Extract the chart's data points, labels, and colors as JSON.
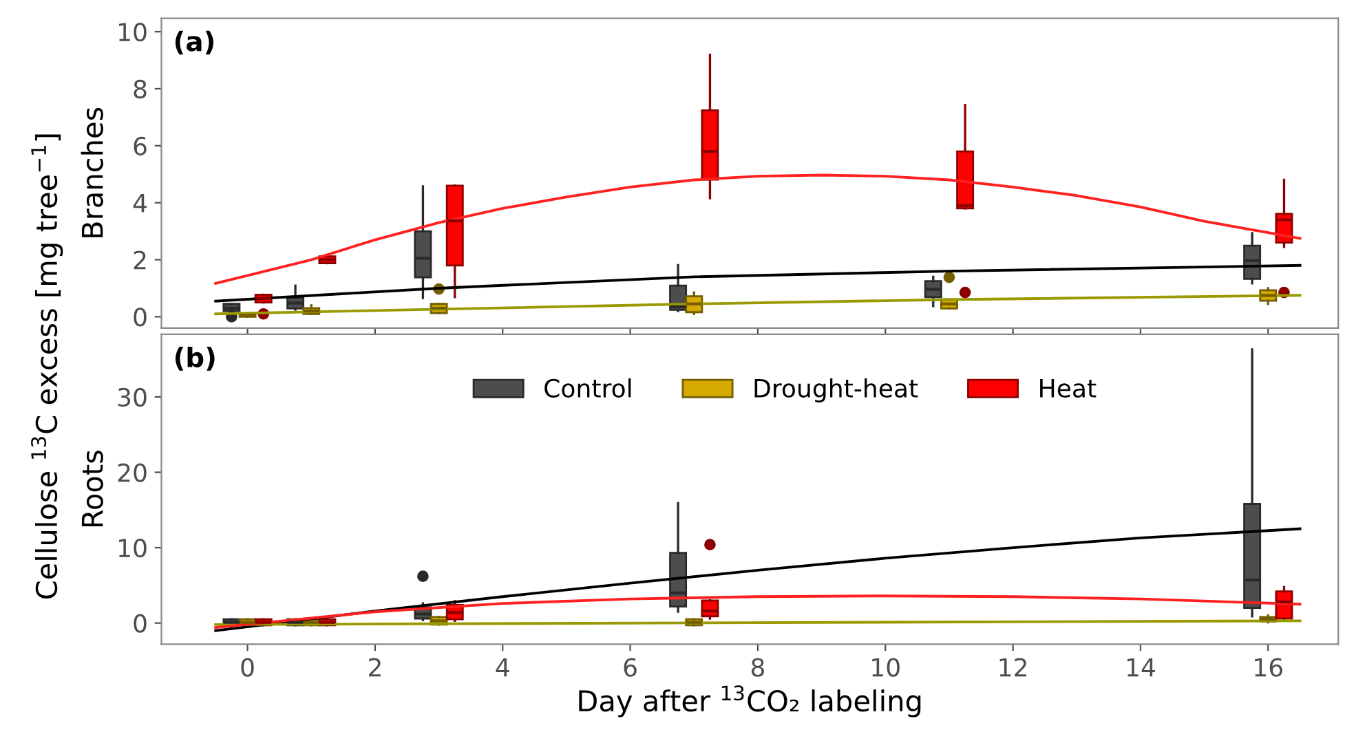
{
  "chart_data": [
    {
      "type": "box",
      "title": "(a)",
      "ylabel": "Branches",
      "annotations": [
        "Cellulose $^{13}$C excess [mg tree$^{−1}$]"
      ],
      "xlim": [
        -1.35,
        17.1
      ],
      "xticks": [
        0,
        2,
        4,
        6,
        8,
        10,
        12,
        14,
        16
      ],
      "ylim": [
        -0.4,
        10.47
      ],
      "yticks": [
        0,
        2,
        4,
        6,
        8,
        10
      ],
      "tick_labels": "y",
      "grid": false,
      "series": [
        {
          "color": "#4d4d4d",
          "x": [
            -0.25,
            0.75,
            2.75,
            6.75,
            10.75,
            15.75
          ],
          "boxes": [
            {
              "low": 0.15,
              "q1": 0.2,
              "median": 0.3,
              "q3": 0.45,
              "high": 0.45,
              "outliers": [
                0.0
              ]
            },
            {
              "low": 0.25,
              "q1": 0.29,
              "median": 0.48,
              "q3": 0.66,
              "high": 1.09
            },
            {
              "low": 0.66,
              "q1": 1.38,
              "median": 2.05,
              "q3": 3.0,
              "high": 4.57
            },
            {
              "low": 0.2,
              "q1": 0.24,
              "median": 0.35,
              "q3": 1.09,
              "high": 1.81
            },
            {
              "low": 0.37,
              "q1": 0.69,
              "median": 0.96,
              "q3": 1.25,
              "high": 1.4
            },
            {
              "low": 1.17,
              "q1": 1.33,
              "median": 1.97,
              "q3": 2.49,
              "high": 2.93
            }
          ]
        },
        {
          "color": "#d4aa00",
          "x": [
            0,
            1,
            3,
            7,
            11,
            16
          ],
          "boxes": [
            {
              "low": 0.0,
              "q1": 0.0,
              "median": 0.05,
              "q3": 0.1,
              "high": 0.1
            },
            {
              "low": 0.1,
              "q1": 0.1,
              "median": 0.2,
              "q3": 0.3,
              "high": 0.4
            },
            {
              "low": 0.13,
              "q1": 0.13,
              "median": 0.3,
              "q3": 0.45,
              "high": 0.45,
              "outliers": [
                0.97
              ]
            },
            {
              "low": 0.1,
              "q1": 0.16,
              "median": 0.45,
              "q3": 0.72,
              "high": 0.85
            },
            {
              "low": 0.29,
              "q1": 0.29,
              "median": 0.45,
              "q3": 0.61,
              "high": 0.61,
              "outliers": [
                1.38
              ]
            },
            {
              "low": 0.45,
              "q1": 0.56,
              "median": 0.75,
              "q3": 0.93,
              "high": 1.0
            }
          ]
        },
        {
          "color": "#ff0000",
          "x": [
            0.25,
            1.25,
            3.25,
            7.25,
            11.25,
            16.25
          ],
          "boxes": [
            {
              "low": 0.5,
              "q1": 0.5,
              "median": 0.65,
              "q3": 0.77,
              "high": 0.77,
              "outliers": [
                0.1
              ]
            },
            {
              "low": 1.88,
              "q1": 1.88,
              "median": 2.0,
              "q3": 2.12,
              "high": 2.12
            },
            {
              "low": 0.69,
              "q1": 1.8,
              "median": 3.36,
              "q3": 4.6,
              "high": 4.6
            },
            {
              "low": 4.16,
              "q1": 4.81,
              "median": 5.8,
              "q3": 7.24,
              "high": 9.19
            },
            {
              "low": 3.8,
              "q1": 3.8,
              "median": 3.9,
              "q3": 5.8,
              "high": 7.43,
              "outliers": [
                0.85
              ]
            },
            {
              "low": 2.45,
              "q1": 2.6,
              "median": 3.4,
              "q3": 3.61,
              "high": 4.8,
              "outliers": [
                0.85
              ]
            }
          ]
        },
        {
          "type": "line",
          "color": "#000000",
          "x": [
            -0.5,
            3,
            7,
            11,
            16.5
          ],
          "values": [
            0.55,
            1.0,
            1.4,
            1.6,
            1.8
          ]
        },
        {
          "type": "line",
          "color": "#999900",
          "x": [
            -0.5,
            7,
            11,
            16.5
          ],
          "values": [
            0.1,
            0.45,
            0.6,
            0.75
          ]
        },
        {
          "type": "line",
          "color": "#ff2020",
          "x": [
            -0.5,
            1,
            2,
            3,
            4,
            5,
            6,
            7,
            8,
            9,
            10,
            11,
            12,
            13,
            14,
            15,
            16,
            16.5
          ],
          "values": [
            1.17,
            2.0,
            2.7,
            3.3,
            3.8,
            4.2,
            4.55,
            4.8,
            4.93,
            4.97,
            4.93,
            4.8,
            4.55,
            4.25,
            3.85,
            3.35,
            2.95,
            2.75
          ]
        }
      ]
    },
    {
      "type": "box",
      "title": "(b)",
      "ylabel": "Roots",
      "xlabel": "Day after $^{13}$CO₂ labeling",
      "xlim": [
        -1.35,
        17.1
      ],
      "xticks": [
        0,
        2,
        4,
        6,
        8,
        10,
        12,
        14,
        16
      ],
      "ylim": [
        -2.8,
        38.3
      ],
      "yticks": [
        0,
        10,
        20,
        30
      ],
      "grid": false,
      "legend": "top",
      "series": [
        {
          "name": "Control",
          "color": "#4d4d4d",
          "x": [
            -0.25,
            0.75,
            2.75,
            6.75,
            15.75
          ],
          "boxes": [
            {
              "low": -0.3,
              "q1": -0.3,
              "median": 0.1,
              "q3": 0.5,
              "high": 0.5
            },
            {
              "low": -0.3,
              "q1": -0.3,
              "median": 0.1,
              "q3": 0.5,
              "high": 0.5
            },
            {
              "low": 0.4,
              "q1": 0.6,
              "median": 1.2,
              "q3": 2.1,
              "high": 2.6,
              "outliers": [
                6.2
              ]
            },
            {
              "low": 1.5,
              "q1": 2.2,
              "median": 4.0,
              "q3": 9.3,
              "high": 15.9
            },
            {
              "low": 0.9,
              "q1": 2.0,
              "median": 5.7,
              "q3": 15.8,
              "high": 36.3
            }
          ]
        },
        {
          "name": "Drought-heat",
          "color": "#d4aa00",
          "x": [
            0,
            1,
            3,
            7,
            16
          ],
          "boxes": [
            {
              "low": -0.3,
              "q1": -0.3,
              "median": 0.1,
              "q3": 0.5,
              "high": 0.5
            },
            {
              "low": -0.3,
              "q1": -0.3,
              "median": 0.1,
              "q3": 0.5,
              "high": 0.5
            },
            {
              "low": -0.2,
              "q1": -0.2,
              "median": 0.3,
              "q3": 0.8,
              "high": 0.8
            },
            {
              "low": -0.3,
              "q1": -0.3,
              "median": 0.1,
              "q3": 0.5,
              "high": 0.5
            },
            {
              "low": 0.1,
              "q1": 0.2,
              "median": 0.5,
              "q3": 0.8,
              "high": 1.0
            }
          ]
        },
        {
          "name": "Heat",
          "color": "#ff0000",
          "x": [
            0.25,
            1.25,
            3.25,
            7.25,
            16.25
          ],
          "boxes": [
            {
              "low": -0.3,
              "q1": -0.3,
              "median": 0.1,
              "q3": 0.5,
              "high": 0.5
            },
            {
              "low": -0.3,
              "q1": -0.3,
              "median": 0.1,
              "q3": 0.5,
              "high": 0.5
            },
            {
              "low": 0.3,
              "q1": 0.5,
              "median": 1.4,
              "q3": 2.4,
              "high": 2.9
            },
            {
              "low": 0.6,
              "q1": 0.9,
              "median": 1.6,
              "q3": 3.0,
              "high": 3.0,
              "outliers": [
                10.4
              ]
            },
            {
              "low": 0.3,
              "q1": 0.6,
              "median": 2.8,
              "q3": 4.2,
              "high": 4.8
            }
          ]
        },
        {
          "type": "line",
          "color": "#000000",
          "x": [
            -0.5,
            0,
            2,
            4,
            6,
            8,
            10,
            12,
            14,
            16.5
          ],
          "values": [
            -1.0,
            -0.5,
            1.6,
            3.5,
            5.3,
            7.0,
            8.6,
            10.0,
            11.3,
            12.5
          ]
        },
        {
          "type": "line",
          "color": "#999900",
          "x": [
            -0.5,
            16.5
          ],
          "values": [
            -0.2,
            0.3
          ]
        },
        {
          "type": "line",
          "color": "#ff2020",
          "x": [
            -0.5,
            2,
            4,
            6,
            8,
            10,
            12,
            14,
            16.5
          ],
          "values": [
            -0.6,
            1.5,
            2.6,
            3.2,
            3.5,
            3.6,
            3.5,
            3.2,
            2.5
          ]
        }
      ]
    }
  ]
}
